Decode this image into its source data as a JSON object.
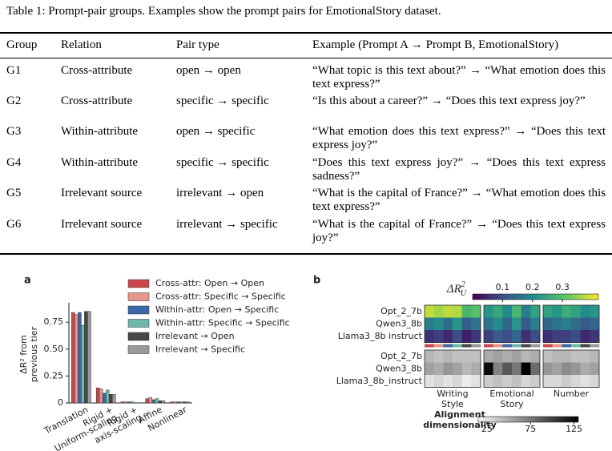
{
  "table": {
    "caption": "Table 1: Prompt-pair groups. Examples show the prompt pairs for EmotionalStory dataset.",
    "header": [
      "Group",
      "Relation",
      "Pair type",
      "Example (Prompt A → Prompt B, EmotionalStory)"
    ],
    "rows": [
      [
        "G1",
        "Cross-attribute",
        "open → open",
        "“What topic is this text about?” → “What emotion does this text express?”"
      ],
      [
        "G2",
        "Cross-attribute",
        "specific → specific",
        "“Is this about a career?” → “Does this text express joy?”"
      ],
      [
        "G3",
        "Within-attribute",
        "open → specific",
        "“What emotion does this text express?” → “Does this text express joy?”"
      ],
      [
        "G4",
        "Within-attribute",
        "specific → specific",
        "“Does this text express joy?” → “Does this text express sadness?”"
      ],
      [
        "G5",
        "Irrelevant source",
        "irrelevant → open",
        "“What is the capital of France?” → “What emotion does this text express?”"
      ],
      [
        "G6",
        "Irrelevant source",
        "irrelevant → specific",
        "“What is the capital of France?” → “Does this text express joy?”"
      ]
    ]
  },
  "chart_data": [
    {
      "type": "bar",
      "panel": "a",
      "ylabel_lines": [
        "ΔR² from",
        "previous tier"
      ],
      "categories": [
        "Translation",
        "Rigid +\nUniform-scaling",
        "Rigid +\naxis-scaling",
        "Affine",
        "Nonlinear"
      ],
      "ylim": [
        0,
        0.9
      ],
      "yticks": [
        0,
        0.25,
        {
          "value": 0.5,
          "label": "0.50"
        },
        0.75
      ],
      "series": [
        {
          "name": "Cross-attr: Open → Open",
          "color": "#c9474d",
          "values": [
            0.84,
            0.14,
            0.01,
            0.04,
            0.01
          ]
        },
        {
          "name": "Cross-attr: Specific → Specific",
          "color": "#e8958c",
          "values": [
            0.82,
            0.13,
            0.01,
            0.05,
            0.01
          ]
        },
        {
          "name": "Within-attr: Open → Specific",
          "color": "#3d68a8",
          "values": [
            0.84,
            0.09,
            0.01,
            0.03,
            0.01
          ]
        },
        {
          "name": "Within-attr: Specific → Specific",
          "color": "#6fb8ad",
          "values": [
            0.72,
            0.12,
            0.01,
            0.04,
            0.01
          ]
        },
        {
          "name": "Irrelevant → Open",
          "color": "#474747",
          "values": [
            0.85,
            0.08,
            0.0,
            0.02,
            0.01
          ]
        },
        {
          "name": "Irrelevant → Specific",
          "color": "#9a9a9a",
          "values": [
            0.85,
            0.08,
            0.0,
            0.02,
            0.01
          ]
        }
      ]
    },
    {
      "type": "heatmap",
      "panel": "b",
      "rows": [
        "Opt_2_7b",
        "Qwen3_8b",
        "Llama3_8b instruct"
      ],
      "rows_bottom": [
        "Opt_2_7b",
        "Qwen3_8b",
        "Llama3_8b_instruct"
      ],
      "groups": [
        "Writing\nStyle",
        "Emotional\nStory",
        "Number"
      ],
      "top_label": "ΔR",
      "top_label_sup": "2",
      "top_label_sub": "U",
      "top_lim": [
        0,
        0.42
      ],
      "top_ticks": [
        0.1,
        0.2,
        0.3
      ],
      "top_colormap": [
        "#440154",
        "#3b528b",
        "#21918c",
        "#5ec962",
        "#fde725"
      ],
      "top_values": [
        [
          0.38,
          0.36,
          0.38,
          0.37,
          0.28,
          0.3,
          0.22,
          0.25,
          0.2,
          0.28,
          0.18,
          0.24,
          0.24,
          0.22,
          0.26,
          0.24,
          0.2,
          0.22
        ],
        [
          0.18,
          0.2,
          0.15,
          0.22,
          0.12,
          0.16,
          0.16,
          0.2,
          0.14,
          0.22,
          0.12,
          0.18,
          0.14,
          0.16,
          0.18,
          0.15,
          0.12,
          0.14
        ],
        [
          0.06,
          0.08,
          0.05,
          0.1,
          0.04,
          0.07,
          0.08,
          0.12,
          0.1,
          0.14,
          0.06,
          0.1,
          0.06,
          0.08,
          0.08,
          0.1,
          0.05,
          0.07
        ]
      ],
      "bottom_label_lines": [
        "Alignment",
        "dimensionality"
      ],
      "bottom_lim": [
        15,
        130
      ],
      "bottom_ticks": [
        25,
        75,
        125
      ],
      "bottom_colormap": [
        "#f7f7f7",
        "#000000"
      ],
      "bottom_values": [
        [
          45,
          40,
          45,
          40,
          40,
          40,
          50,
          55,
          50,
          55,
          45,
          50,
          40,
          45,
          45,
          40,
          40,
          45
        ],
        [
          55,
          50,
          60,
          55,
          45,
          50,
          125,
          70,
          90,
          75,
          130,
          80,
          60,
          55,
          65,
          60,
          50,
          55
        ],
        [
          25,
          30,
          25,
          30,
          20,
          25,
          35,
          40,
          35,
          40,
          30,
          35,
          30,
          30,
          35,
          30,
          25,
          30
        ]
      ]
    }
  ]
}
